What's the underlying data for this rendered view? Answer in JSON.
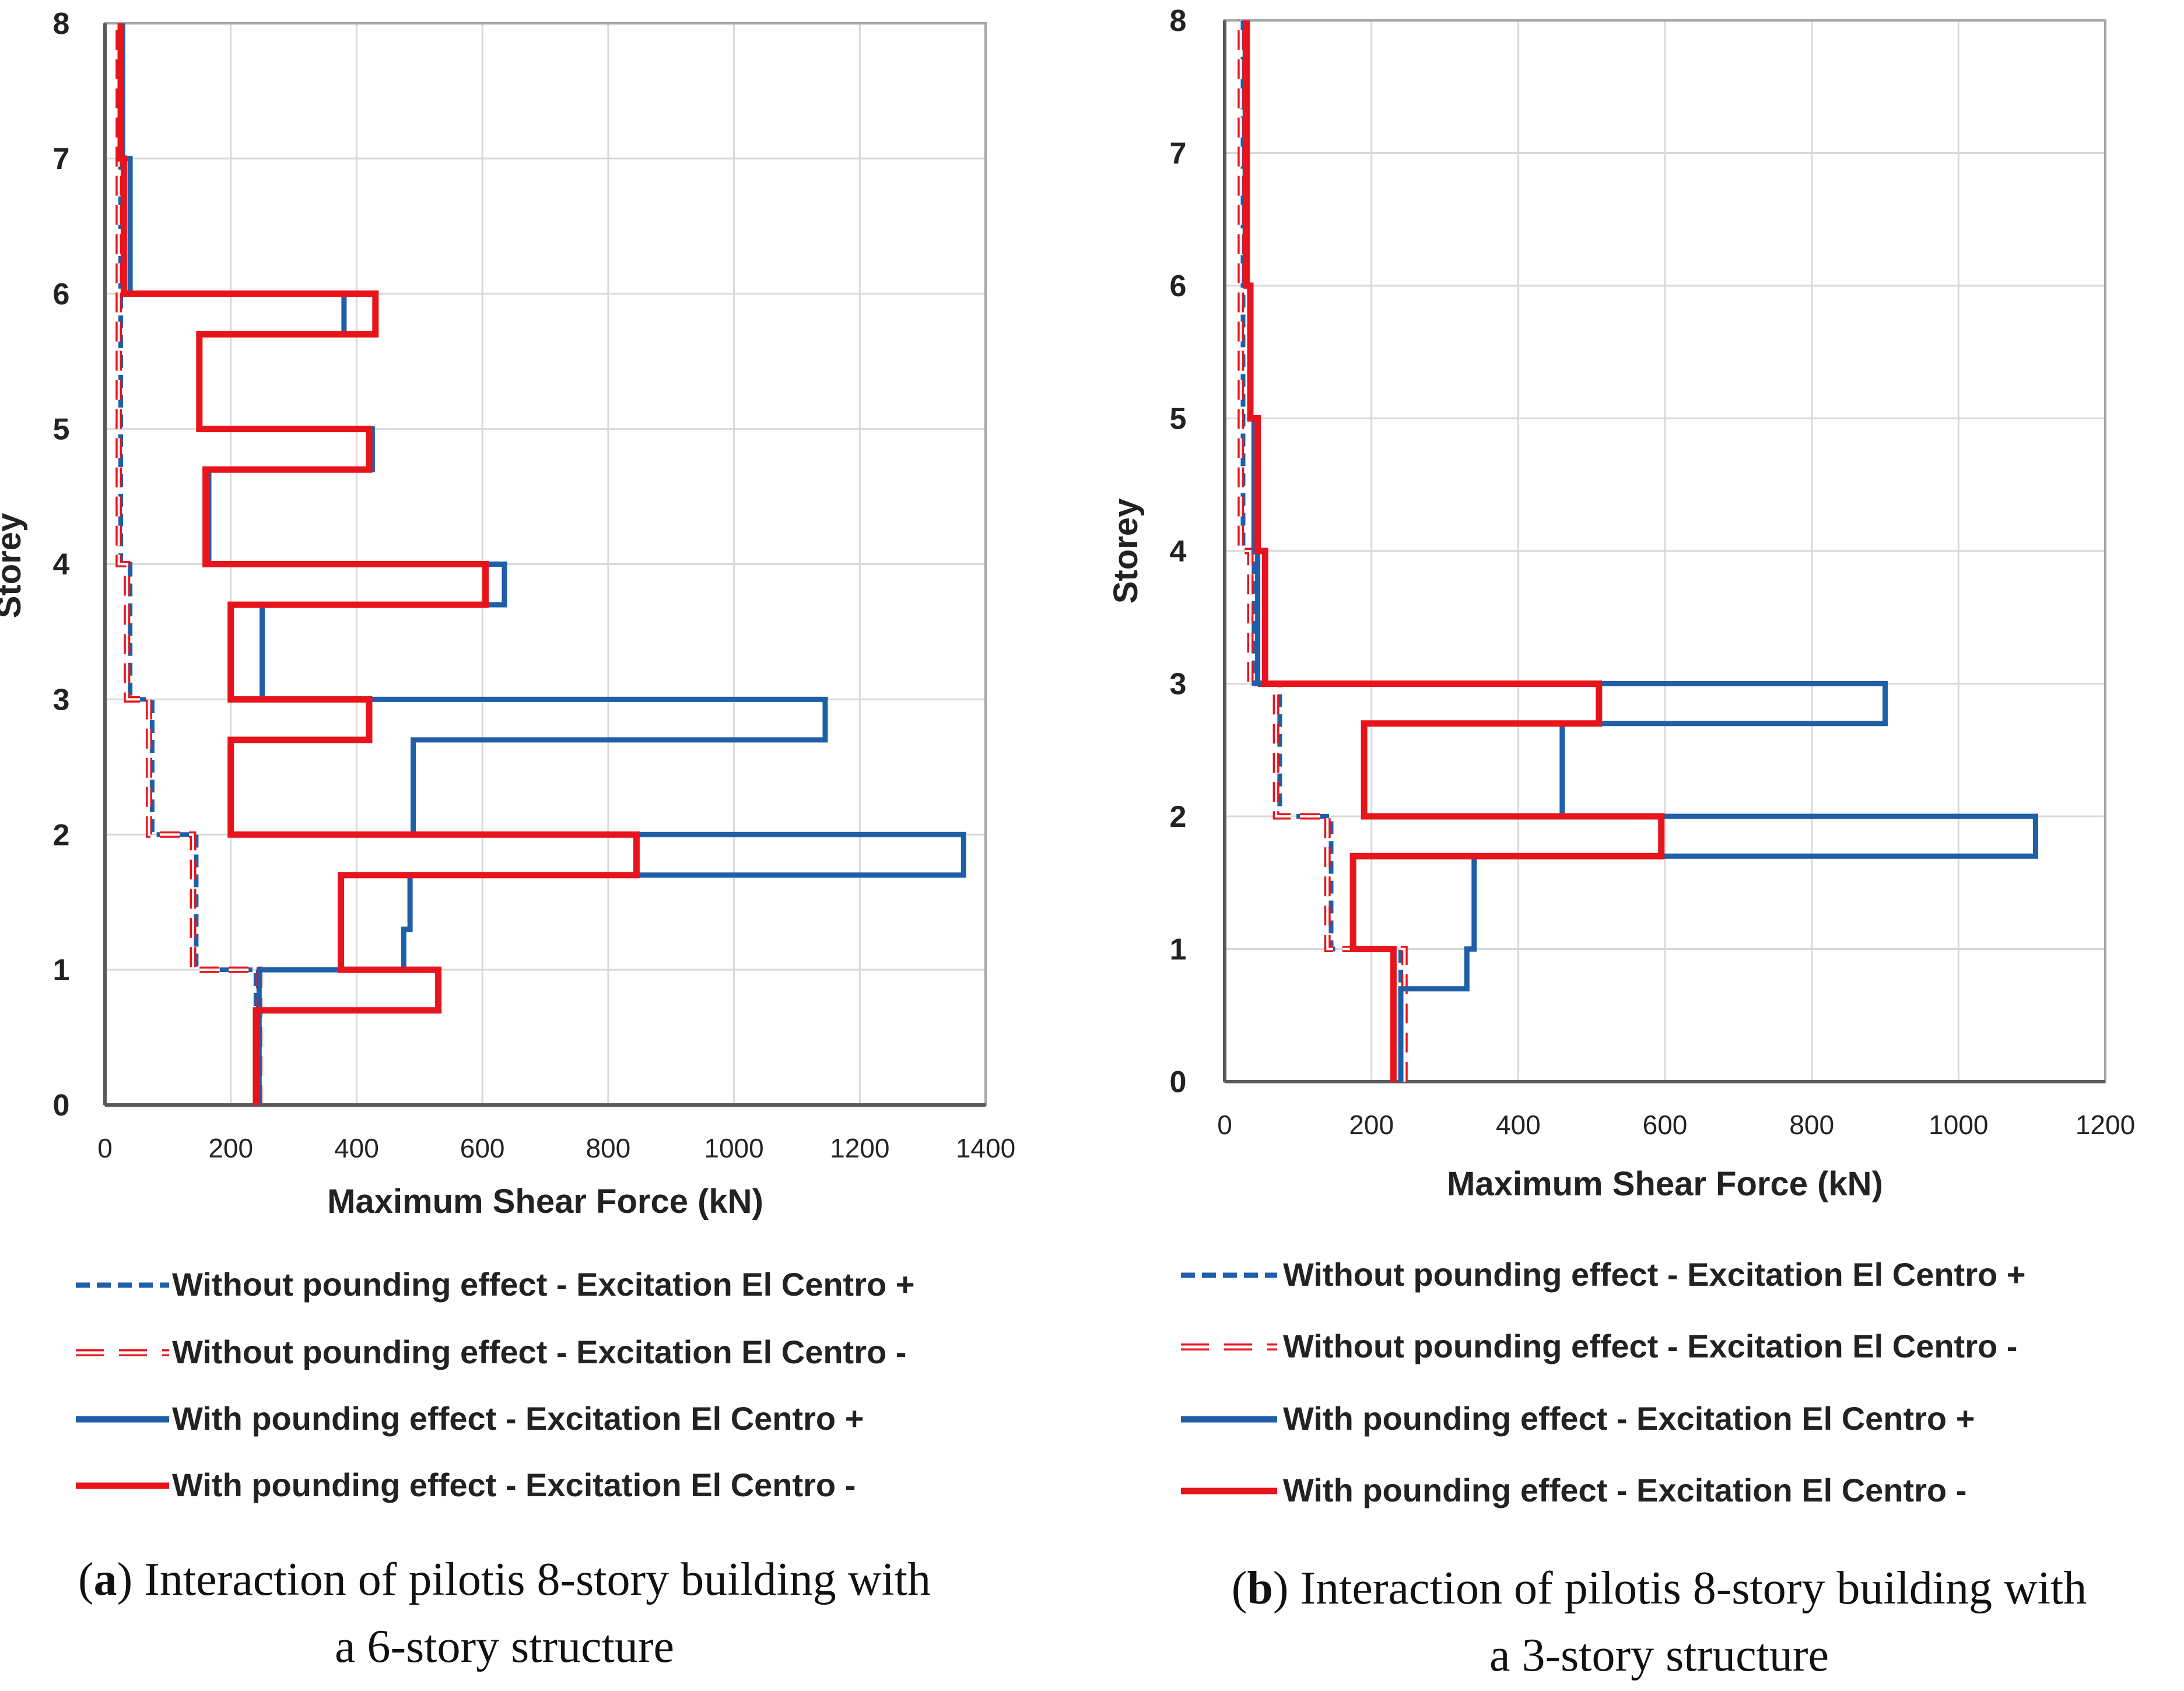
{
  "chart_data": [
    {
      "id": "a",
      "type": "line",
      "caption_letter": "a",
      "caption_open": "(",
      "caption_close": ")",
      "caption_line1": " Interaction of pilotis 8-story building with",
      "caption_line2": "a 6-story structure",
      "xlabel": "Maximum Shear Force (kN)",
      "ylabel": "Storey",
      "xlim": [
        0,
        1400
      ],
      "ylim": [
        0,
        8
      ],
      "xticks": [
        "0",
        "200",
        "400",
        "600",
        "800",
        "1000",
        "1200",
        "1400"
      ],
      "yticks": [
        "0",
        "1",
        "2",
        "3",
        "4",
        "5",
        "6",
        "7",
        "8"
      ],
      "grid": true,
      "legend_position": "below",
      "series": [
        {
          "name": "Without pounding effect - Excitation El Centro +",
          "color": "#1f5fa8",
          "style": "dashed",
          "points": [
            [
              240,
              0
            ],
            [
              240,
              1
            ],
            [
              145,
              1
            ],
            [
              145,
              2
            ],
            [
              75,
              2
            ],
            [
              75,
              3
            ],
            [
              40,
              3
            ],
            [
              40,
              4
            ],
            [
              25,
              4
            ],
            [
              25,
              8
            ]
          ]
        },
        {
          "name": "Without pounding effect - Excitation El Centro -",
          "color": "#e8141c",
          "style": "hollow-dash",
          "points": [
            [
              245,
              0
            ],
            [
              245,
              1
            ],
            [
              140,
              1
            ],
            [
              140,
              2
            ],
            [
              70,
              2
            ],
            [
              70,
              3
            ],
            [
              35,
              3
            ],
            [
              35,
              4
            ],
            [
              22,
              4
            ],
            [
              22,
              8
            ]
          ]
        },
        {
          "name": "With pounding effect - Excitation El Centro +",
          "color": "#1f5fa8",
          "style": "solid",
          "points": [
            [
              245,
              0
            ],
            [
              245,
              1
            ],
            [
              475,
              1
            ],
            [
              475,
              1.3
            ],
            [
              485,
              1.3
            ],
            [
              485,
              1.7
            ],
            [
              1365,
              1.7
            ],
            [
              1365,
              2
            ],
            [
              490,
              2
            ],
            [
              490,
              2.7
            ],
            [
              1145,
              2.7
            ],
            [
              1145,
              3
            ],
            [
              250,
              3
            ],
            [
              250,
              3.7
            ],
            [
              635,
              3.7
            ],
            [
              635,
              4
            ],
            [
              165,
              4
            ],
            [
              165,
              4.7
            ],
            [
              425,
              4.7
            ],
            [
              425,
              5
            ],
            [
              150,
              5
            ],
            [
              150,
              5.7
            ],
            [
              380,
              5.7
            ],
            [
              380,
              6
            ],
            [
              40,
              6
            ],
            [
              40,
              7
            ],
            [
              28,
              7
            ],
            [
              28,
              8
            ]
          ]
        },
        {
          "name": "With pounding effect - Excitation El Centro -",
          "color": "#e8141c",
          "style": "solid",
          "points": [
            [
              240,
              0
            ],
            [
              240,
              0.7
            ],
            [
              530,
              0.7
            ],
            [
              530,
              1
            ],
            [
              375,
              1
            ],
            [
              375,
              1.7
            ],
            [
              845,
              1.7
            ],
            [
              845,
              2
            ],
            [
              200,
              2
            ],
            [
              200,
              2.7
            ],
            [
              420,
              2.7
            ],
            [
              420,
              3
            ],
            [
              200,
              3
            ],
            [
              200,
              3.7
            ],
            [
              605,
              3.7
            ],
            [
              605,
              4
            ],
            [
              160,
              4
            ],
            [
              160,
              4.7
            ],
            [
              420,
              4.7
            ],
            [
              420,
              5
            ],
            [
              150,
              5
            ],
            [
              150,
              5.7
            ],
            [
              430,
              5.7
            ],
            [
              430,
              6
            ],
            [
              30,
              6
            ],
            [
              30,
              7
            ],
            [
              25,
              7
            ],
            [
              25,
              8
            ]
          ]
        }
      ]
    },
    {
      "id": "b",
      "type": "line",
      "caption_letter": "b",
      "caption_open": "(",
      "caption_close": ")",
      "caption_line1": " Interaction of pilotis 8-story building with",
      "caption_line2": "a 3-story structure",
      "xlabel": "Maximum Shear Force (kN)",
      "ylabel": "Storey",
      "xlim": [
        0,
        1200
      ],
      "ylim": [
        0,
        8
      ],
      "xticks": [
        "0",
        "200",
        "400",
        "600",
        "800",
        "1000",
        "1200"
      ],
      "yticks": [
        "0",
        "1",
        "2",
        "3",
        "4",
        "5",
        "6",
        "7",
        "8"
      ],
      "grid": true,
      "legend_position": "below",
      "series": [
        {
          "name": "Without pounding effect - Excitation El Centro +",
          "color": "#1f5fa8",
          "style": "dashed",
          "points": [
            [
              240,
              0
            ],
            [
              240,
              1
            ],
            [
              145,
              1
            ],
            [
              145,
              2
            ],
            [
              75,
              2
            ],
            [
              75,
              3
            ],
            [
              40,
              3
            ],
            [
              40,
              4
            ],
            [
              25,
              4
            ],
            [
              25,
              8
            ]
          ]
        },
        {
          "name": "Without pounding effect - Excitation El Centro -",
          "color": "#e8141c",
          "style": "hollow-dash",
          "points": [
            [
              245,
              0
            ],
            [
              245,
              1
            ],
            [
              140,
              1
            ],
            [
              140,
              2
            ],
            [
              70,
              2
            ],
            [
              70,
              3
            ],
            [
              35,
              3
            ],
            [
              35,
              4
            ],
            [
              22,
              4
            ],
            [
              22,
              8
            ]
          ]
        },
        {
          "name": "With pounding effect - Excitation El Centro +",
          "color": "#1f5fa8",
          "style": "solid",
          "points": [
            [
              240,
              0
            ],
            [
              240,
              0.7
            ],
            [
              330,
              0.7
            ],
            [
              330,
              1
            ],
            [
              340,
              1
            ],
            [
              340,
              1.7
            ],
            [
              1105,
              1.7
            ],
            [
              1105,
              2
            ],
            [
              460,
              2
            ],
            [
              460,
              2.7
            ],
            [
              900,
              2.7
            ],
            [
              900,
              3
            ],
            [
              45,
              3
            ],
            [
              45,
              4
            ],
            [
              40,
              4
            ],
            [
              40,
              5
            ],
            [
              35,
              5
            ],
            [
              35,
              6
            ],
            [
              28,
              6
            ],
            [
              28,
              8
            ]
          ]
        },
        {
          "name": "With pounding effect - Excitation El Centro -",
          "color": "#e8141c",
          "style": "solid",
          "points": [
            [
              230,
              0
            ],
            [
              230,
              1
            ],
            [
              175,
              1
            ],
            [
              175,
              1.7
            ],
            [
              595,
              1.7
            ],
            [
              595,
              2
            ],
            [
              190,
              2
            ],
            [
              190,
              2.7
            ],
            [
              510,
              2.7
            ],
            [
              510,
              3
            ],
            [
              55,
              3
            ],
            [
              55,
              4
            ],
            [
              45,
              4
            ],
            [
              45,
              5
            ],
            [
              35,
              5
            ],
            [
              35,
              6
            ],
            [
              30,
              6
            ],
            [
              30,
              8
            ]
          ]
        }
      ]
    }
  ]
}
